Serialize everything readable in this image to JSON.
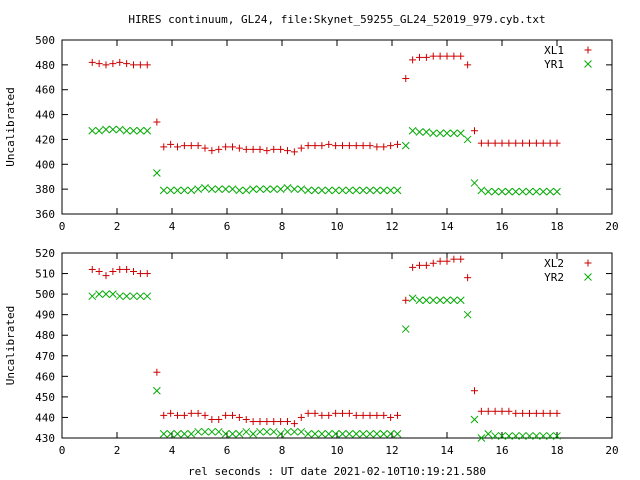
{
  "title": "HIRES continuum, GL24, file:Skynet_59255_GL24_52019_979.cyb.txt",
  "xlabel": "rel seconds : UT date 2021-02-10T10:19:21.580",
  "chart_data": [
    {
      "type": "scatter",
      "ylabel": "Uncalibrated",
      "xlim": [
        0,
        20
      ],
      "ylim": [
        360,
        500
      ],
      "xticks": [
        0,
        2,
        4,
        6,
        8,
        10,
        12,
        14,
        16,
        18,
        20
      ],
      "yticks": [
        360,
        380,
        400,
        420,
        440,
        460,
        480,
        500
      ],
      "legend_position": "top-right",
      "series": [
        {
          "name": "XL1",
          "marker": "+",
          "color": "#cc0000",
          "x": [
            1.1,
            1.35,
            1.6,
            1.85,
            2.1,
            2.35,
            2.6,
            2.85,
            3.1,
            3.45,
            3.7,
            3.95,
            4.2,
            4.45,
            4.7,
            4.95,
            5.2,
            5.45,
            5.7,
            5.95,
            6.2,
            6.45,
            6.7,
            6.95,
            7.2,
            7.45,
            7.7,
            7.95,
            8.2,
            8.45,
            8.7,
            8.95,
            9.2,
            9.45,
            9.7,
            9.95,
            10.2,
            10.45,
            10.7,
            10.95,
            11.2,
            11.45,
            11.7,
            11.95,
            12.2,
            12.5,
            12.75,
            13.0,
            13.25,
            13.5,
            13.75,
            14.0,
            14.25,
            14.5,
            14.75,
            15.0,
            15.25,
            15.5,
            15.75,
            16.0,
            16.25,
            16.5,
            16.75,
            17.0,
            17.25,
            17.5,
            17.75,
            18.0
          ],
          "y": [
            482,
            481,
            480,
            481,
            482,
            481,
            480,
            480,
            480,
            434,
            414,
            416,
            414,
            415,
            415,
            415,
            413,
            411,
            412,
            414,
            414,
            413,
            412,
            412,
            412,
            411,
            412,
            412,
            411,
            410,
            413,
            415,
            415,
            415,
            416,
            415,
            415,
            415,
            415,
            415,
            415,
            414,
            414,
            415,
            416,
            469,
            484,
            486,
            486,
            487,
            487,
            487,
            487,
            487,
            480,
            427,
            417,
            417,
            417,
            417,
            417,
            417,
            417,
            417,
            417,
            417,
            417,
            417
          ]
        },
        {
          "name": "YR1",
          "marker": "x",
          "color": "#00aa00",
          "x": [
            1.1,
            1.35,
            1.6,
            1.85,
            2.1,
            2.35,
            2.6,
            2.85,
            3.1,
            3.45,
            3.7,
            3.95,
            4.2,
            4.45,
            4.7,
            4.95,
            5.2,
            5.45,
            5.7,
            5.95,
            6.2,
            6.45,
            6.7,
            6.95,
            7.2,
            7.45,
            7.7,
            7.95,
            8.2,
            8.45,
            8.7,
            8.95,
            9.2,
            9.45,
            9.7,
            9.95,
            10.2,
            10.45,
            10.7,
            10.95,
            11.2,
            11.45,
            11.7,
            11.95,
            12.2,
            12.5,
            12.75,
            13.0,
            13.25,
            13.5,
            13.75,
            14.0,
            14.25,
            14.5,
            14.75,
            15.0,
            15.25,
            15.5,
            15.75,
            16.0,
            16.25,
            16.5,
            16.75,
            17.0,
            17.25,
            17.5,
            17.75,
            18.0
          ],
          "y": [
            427,
            427,
            428,
            428,
            428,
            427,
            427,
            427,
            427,
            393,
            379,
            379,
            379,
            379,
            379,
            380,
            381,
            380,
            380,
            380,
            380,
            379,
            379,
            380,
            380,
            380,
            380,
            380,
            381,
            380,
            380,
            379,
            379,
            379,
            379,
            379,
            379,
            379,
            379,
            379,
            379,
            379,
            379,
            379,
            379,
            415,
            427,
            426,
            426,
            425,
            425,
            425,
            425,
            425,
            420,
            385,
            379,
            378,
            378,
            378,
            378,
            378,
            378,
            378,
            378,
            378,
            378,
            378
          ]
        }
      ]
    },
    {
      "type": "scatter",
      "ylabel": "Uncalibrated",
      "xlim": [
        0,
        20
      ],
      "ylim": [
        430,
        520
      ],
      "xticks": [
        0,
        2,
        4,
        6,
        8,
        10,
        12,
        14,
        16,
        18,
        20
      ],
      "yticks": [
        430,
        440,
        450,
        460,
        470,
        480,
        490,
        500,
        510,
        520
      ],
      "legend_position": "top-right",
      "series": [
        {
          "name": "XL2",
          "marker": "+",
          "color": "#cc0000",
          "x": [
            1.1,
            1.35,
            1.6,
            1.85,
            2.1,
            2.35,
            2.6,
            2.85,
            3.1,
            3.45,
            3.7,
            3.95,
            4.2,
            4.45,
            4.7,
            4.95,
            5.2,
            5.45,
            5.7,
            5.95,
            6.2,
            6.45,
            6.7,
            6.95,
            7.2,
            7.45,
            7.7,
            7.95,
            8.2,
            8.45,
            8.7,
            8.95,
            9.2,
            9.45,
            9.7,
            9.95,
            10.2,
            10.45,
            10.7,
            10.95,
            11.2,
            11.45,
            11.7,
            11.95,
            12.2,
            12.5,
            12.75,
            13.0,
            13.25,
            13.5,
            13.75,
            14.0,
            14.25,
            14.5,
            14.75,
            15.0,
            15.25,
            15.5,
            15.75,
            16.0,
            16.25,
            16.5,
            16.75,
            17.0,
            17.25,
            17.5,
            17.75,
            18.0
          ],
          "y": [
            512,
            511,
            509,
            511,
            512,
            512,
            511,
            510,
            510,
            462,
            441,
            442,
            441,
            441,
            442,
            442,
            441,
            439,
            439,
            441,
            441,
            440,
            439,
            438,
            438,
            438,
            438,
            438,
            438,
            437,
            440,
            442,
            442,
            441,
            441,
            442,
            442,
            442,
            441,
            441,
            441,
            441,
            441,
            440,
            441,
            497,
            513,
            514,
            514,
            515,
            516,
            516,
            517,
            517,
            508,
            453,
            443,
            443,
            443,
            443,
            443,
            442,
            442,
            442,
            442,
            442,
            442,
            442
          ]
        },
        {
          "name": "YR2",
          "marker": "x",
          "color": "#00aa00",
          "x": [
            1.1,
            1.35,
            1.6,
            1.85,
            2.1,
            2.35,
            2.6,
            2.85,
            3.1,
            3.45,
            3.7,
            3.95,
            4.2,
            4.45,
            4.7,
            4.95,
            5.2,
            5.45,
            5.7,
            5.95,
            6.2,
            6.45,
            6.7,
            6.95,
            7.2,
            7.45,
            7.7,
            7.95,
            8.2,
            8.45,
            8.7,
            8.95,
            9.2,
            9.45,
            9.7,
            9.95,
            10.2,
            10.45,
            10.7,
            10.95,
            11.2,
            11.45,
            11.7,
            11.95,
            12.2,
            12.5,
            12.75,
            13.0,
            13.25,
            13.5,
            13.75,
            14.0,
            14.25,
            14.5,
            14.75,
            15.0,
            15.25,
            15.5,
            15.75,
            16.0,
            16.25,
            16.5,
            16.75,
            17.0,
            17.25,
            17.5,
            17.75,
            18.0
          ],
          "y": [
            499,
            500,
            500,
            500,
            499,
            499,
            499,
            499,
            499,
            453,
            432,
            432,
            432,
            432,
            432,
            433,
            433,
            433,
            433,
            432,
            432,
            432,
            433,
            432,
            433,
            433,
            433,
            432,
            433,
            433,
            433,
            432,
            432,
            432,
            432,
            432,
            432,
            432,
            432,
            432,
            432,
            432,
            432,
            432,
            432,
            483,
            498,
            497,
            497,
            497,
            497,
            497,
            497,
            497,
            490,
            439,
            430,
            432,
            431,
            431,
            431,
            431,
            431,
            431,
            431,
            431,
            431,
            431
          ]
        }
      ]
    }
  ]
}
